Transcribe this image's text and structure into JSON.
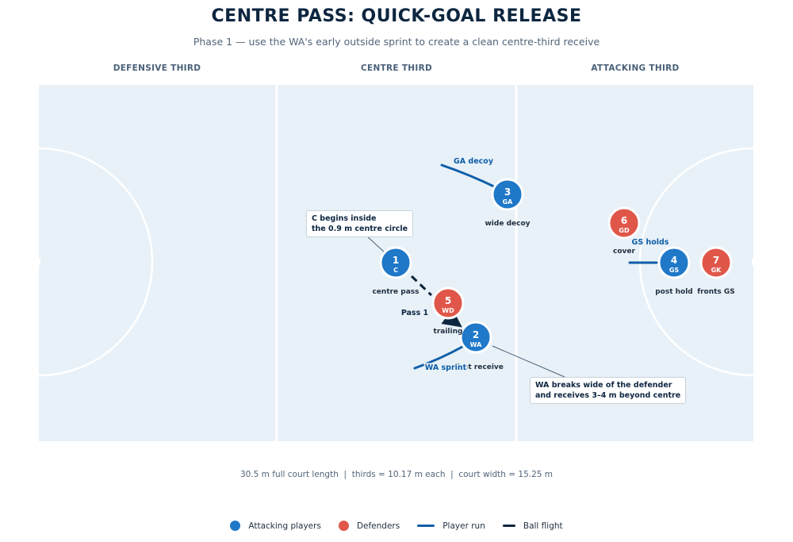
{
  "title": "CENTRE PASS: QUICK-GOAL RELEASE",
  "subtitle": "Phase 1 — use the WA's early outside sprint to create a clean centre-third receive",
  "thirds": [
    "DEFENSIVE THIRD",
    "CENTRE THIRD",
    "ATTACKING THIRD"
  ],
  "colors": {
    "court": "#e8f1f7",
    "lines": "#ffffff",
    "attack": "#1f78c8",
    "defend": "#e0574a",
    "run": "#0f5ea8",
    "ball": "#0d2640"
  },
  "players": [
    {
      "id": "c",
      "num": "1",
      "pos": "C",
      "team": "attack",
      "label": "centre pass"
    },
    {
      "id": "wa",
      "num": "2",
      "pos": "WA",
      "team": "attack",
      "label": "fast receive"
    },
    {
      "id": "ga",
      "num": "3",
      "pos": "GA",
      "team": "attack",
      "label": "wide decoy"
    },
    {
      "id": "gs",
      "num": "4",
      "pos": "GS",
      "team": "attack",
      "label": "post hold"
    },
    {
      "id": "wd",
      "num": "5",
      "pos": "WD",
      "team": "defend",
      "label": "trailing"
    },
    {
      "id": "gd",
      "num": "6",
      "pos": "GD",
      "team": "defend",
      "label": "cover"
    },
    {
      "id": "gk",
      "num": "7",
      "pos": "GK",
      "team": "defend",
      "label": "fronts GS"
    }
  ],
  "run_labels": {
    "ga": "GA decoy",
    "wa": "WA sprint",
    "gs": "GS holds"
  },
  "pass_label": "Pass 1",
  "callouts": {
    "c": [
      "C begins inside",
      "the 0.9 m centre circle"
    ],
    "wa": [
      "WA breaks wide of the defender",
      "and receives 3–4 m beyond centre"
    ]
  },
  "footnote": "30.5 m full court length  |  thirds = 10.17 m each  |  court width = 15.25 m",
  "legend": {
    "attack": "Attacking players",
    "defend": "Defenders",
    "run": "Player run",
    "ball": "Ball flight"
  }
}
